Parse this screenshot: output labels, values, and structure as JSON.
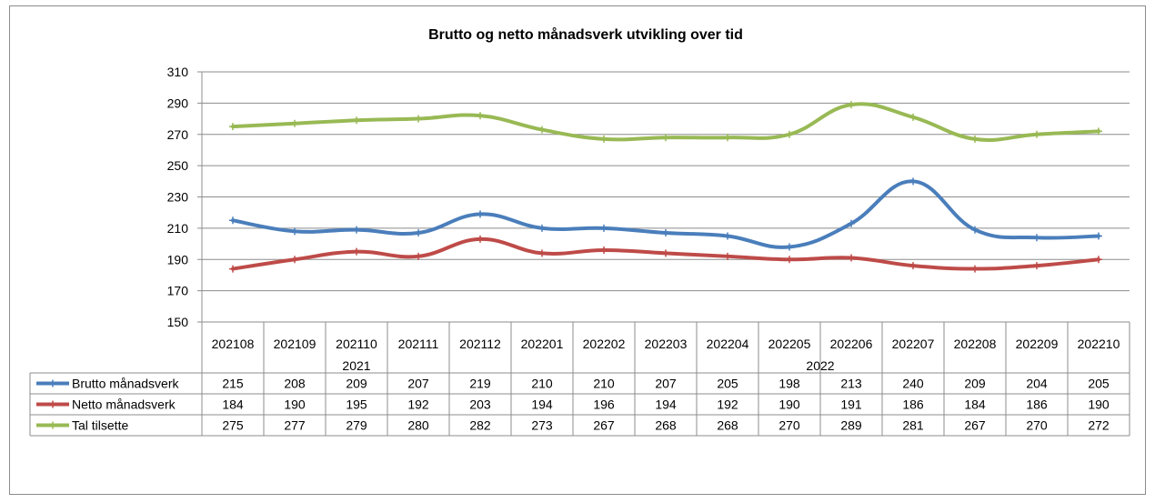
{
  "chart_data": {
    "type": "line",
    "title": "Brutto og netto månadsverk utvikling over tid",
    "categories": [
      "202108",
      "202109",
      "202110",
      "202111",
      "202112",
      "202201",
      "202202",
      "202203",
      "202204",
      "202205",
      "202206",
      "202207",
      "202208",
      "202209",
      "202210"
    ],
    "year_groups": [
      {
        "label": "2021",
        "start": 0,
        "end": 4
      },
      {
        "label": "2022",
        "start": 5,
        "end": 14
      }
    ],
    "ylim": [
      150,
      310
    ],
    "yticks": [
      150,
      170,
      190,
      210,
      230,
      250,
      270,
      290,
      310
    ],
    "grid": true,
    "legend": "data-table",
    "series": [
      {
        "name": "Brutto månadsverk",
        "color": "#4a7ebb",
        "values": [
          215,
          208,
          209,
          207,
          219,
          210,
          210,
          207,
          205,
          198,
          213,
          240,
          209,
          204,
          205
        ]
      },
      {
        "name": "Netto månadsverk",
        "color": "#be4b48",
        "values": [
          184,
          190,
          195,
          192,
          203,
          194,
          196,
          194,
          192,
          190,
          191,
          186,
          184,
          186,
          190
        ]
      },
      {
        "name": "Tal tilsette",
        "color": "#98b954",
        "values": [
          275,
          277,
          279,
          280,
          282,
          273,
          267,
          268,
          268,
          270,
          289,
          281,
          267,
          270,
          272
        ]
      }
    ]
  }
}
